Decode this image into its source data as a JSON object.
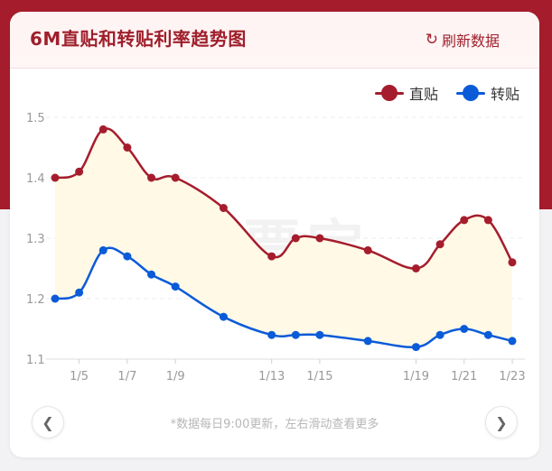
{
  "card": {
    "title": "6M直贴和转贴利率趋势图",
    "refresh_label": "刷新数据",
    "refresh_icon": "↻",
    "watermark": "贴票宝",
    "footnote": "*数据每日9:00更新，左右滑动查看更多",
    "prev_glyph": "❮",
    "next_glyph": "❯"
  },
  "chart_data": {
    "type": "line",
    "x": [
      "1/4",
      "1/5",
      "1/6",
      "1/7",
      "1/8",
      "1/9",
      "1/11",
      "1/13",
      "1/14",
      "1/15",
      "1/17",
      "1/19",
      "1/20",
      "1/21",
      "1/22",
      "1/23"
    ],
    "xticks": [
      "1/5",
      "1/7",
      "1/9",
      "1/13",
      "1/15",
      "1/19",
      "1/21",
      "1/23"
    ],
    "ylim": [
      1.1,
      1.5
    ],
    "yticks": [
      "1.1",
      "1.2",
      "1.3",
      "1.4",
      "1.5"
    ],
    "grid": true,
    "legend": "top-right",
    "series": [
      {
        "name": "直贴",
        "color": "#a51d2d",
        "values": [
          1.4,
          1.41,
          1.48,
          1.45,
          1.4,
          1.4,
          1.35,
          1.27,
          1.3,
          1.3,
          1.28,
          1.25,
          1.29,
          1.33,
          1.33,
          1.26
        ]
      },
      {
        "name": "转贴",
        "color": "#0b5bd8",
        "values": [
          1.2,
          1.21,
          1.28,
          1.27,
          1.24,
          1.22,
          1.17,
          1.14,
          1.14,
          1.14,
          1.13,
          1.12,
          1.14,
          1.15,
          1.14,
          1.13
        ]
      }
    ],
    "band_fill": "#fff9e6"
  }
}
